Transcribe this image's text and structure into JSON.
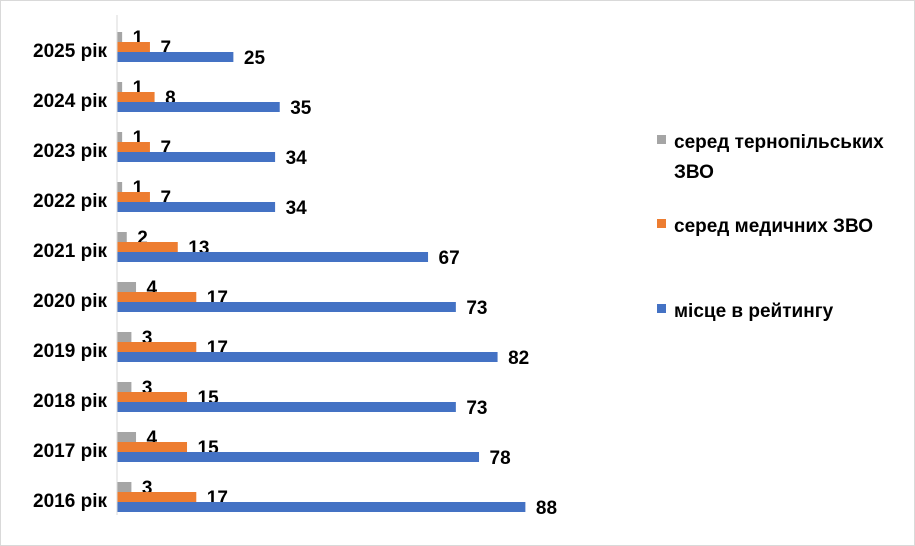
{
  "chart_data": {
    "type": "bar",
    "orientation": "horizontal",
    "categories": [
      "2025 рік",
      "2024 рік",
      "2023 рік",
      "2022 рік",
      "2021 рік",
      "2020 рік",
      "2019 рік",
      "2018 рік",
      "2017 рік",
      "2016 рік"
    ],
    "series": [
      {
        "name": "серед тернопільських ЗВО",
        "color": "#a5a5a5",
        "values": [
          1,
          1,
          1,
          1,
          2,
          4,
          3,
          3,
          4,
          3
        ]
      },
      {
        "name": "серед медичних ЗВО",
        "color": "#ed7d31",
        "values": [
          7,
          8,
          7,
          7,
          13,
          17,
          17,
          15,
          15,
          17
        ]
      },
      {
        "name": "місце в рейтингу",
        "color": "#4472c4",
        "values": [
          25,
          35,
          34,
          34,
          67,
          73,
          82,
          73,
          78,
          88
        ]
      }
    ],
    "title": "",
    "xlabel": "",
    "ylabel": "",
    "xlim": [
      0,
      100
    ],
    "grid": false,
    "legend_position": "right",
    "data_labels": true
  }
}
